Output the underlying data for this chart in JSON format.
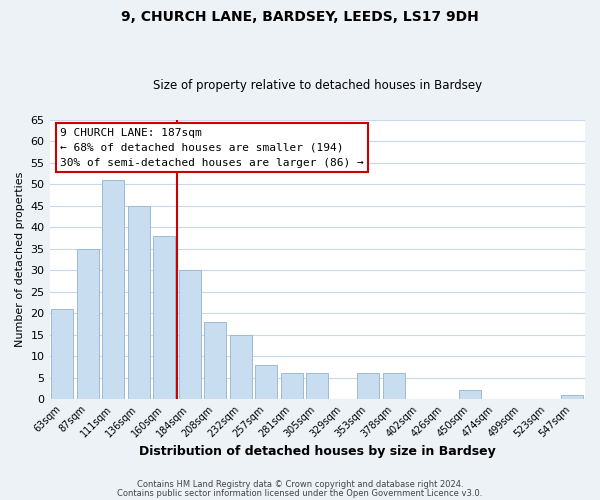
{
  "title1": "9, CHURCH LANE, BARDSEY, LEEDS, LS17 9DH",
  "title2": "Size of property relative to detached houses in Bardsey",
  "xlabel": "Distribution of detached houses by size in Bardsey",
  "ylabel": "Number of detached properties",
  "bar_labels": [
    "63sqm",
    "87sqm",
    "111sqm",
    "136sqm",
    "160sqm",
    "184sqm",
    "208sqm",
    "232sqm",
    "257sqm",
    "281sqm",
    "305sqm",
    "329sqm",
    "353sqm",
    "378sqm",
    "402sqm",
    "426sqm",
    "450sqm",
    "474sqm",
    "499sqm",
    "523sqm",
    "547sqm"
  ],
  "bar_values": [
    21,
    35,
    51,
    45,
    38,
    30,
    18,
    15,
    8,
    6,
    6,
    0,
    6,
    6,
    0,
    0,
    2,
    0,
    0,
    0,
    1
  ],
  "bar_color": "#c8ddef",
  "bar_edge_color": "#9abcd4",
  "ylim": [
    0,
    65
  ],
  "yticks": [
    0,
    5,
    10,
    15,
    20,
    25,
    30,
    35,
    40,
    45,
    50,
    55,
    60,
    65
  ],
  "vline_color": "#cc0000",
  "annotation_title": "9 CHURCH LANE: 187sqm",
  "annotation_line1": "← 68% of detached houses are smaller (194)",
  "annotation_line2": "30% of semi-detached houses are larger (86) →",
  "annotation_box_color": "#ffffff",
  "annotation_box_edge": "#cc0000",
  "footer1": "Contains HM Land Registry data © Crown copyright and database right 2024.",
  "footer2": "Contains public sector information licensed under the Open Government Licence v3.0.",
  "background_color": "#edf2f7",
  "plot_background_color": "#ffffff",
  "grid_color": "#c8d8e8"
}
